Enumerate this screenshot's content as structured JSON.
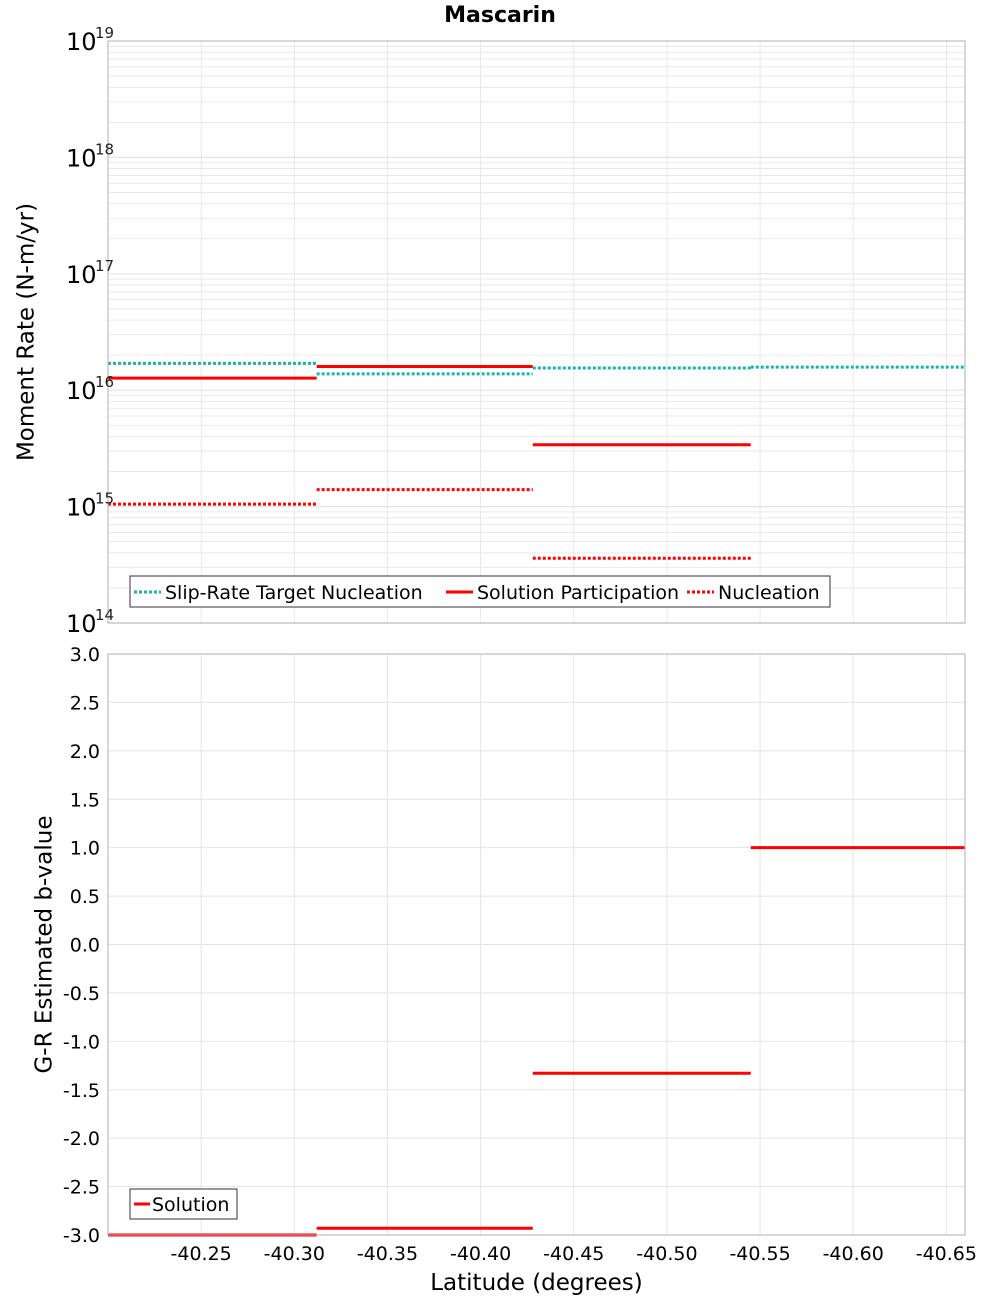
{
  "title": "Mascarin",
  "colors": {
    "target": "#1ab3b3",
    "solution": "#ff0000",
    "grid": "#e4e4e4",
    "frame": "#b0b0b0"
  },
  "chart_data": [
    {
      "type": "line",
      "title": "Mascarin",
      "xlabel": "",
      "ylabel": "Moment Rate (N-m/yr)",
      "yscale": "log",
      "ylim": [
        100000000000000.0,
        1e+19
      ],
      "xlim": [
        -40.2,
        -40.66
      ],
      "ytick_base": "10",
      "yticks": [
        {
          "value": 1e+19,
          "exp": "19"
        },
        {
          "value": 1e+18,
          "exp": "18"
        },
        {
          "value": 1e+17,
          "exp": "17"
        },
        {
          "value": 1e+16,
          "exp": "16"
        },
        {
          "value": 1000000000000000.0,
          "exp": "15"
        },
        {
          "value": 100000000000000.0,
          "exp": "14"
        }
      ],
      "grid": true,
      "legend_position": "bottom-left",
      "series": [
        {
          "name": "Slip-Rate Target Nucleation",
          "style": "dotted",
          "color": "#1ab3b3",
          "segments": [
            {
              "x": [
                -40.2,
                -40.312
              ],
              "y": 1.7e+16
            },
            {
              "x": [
                -40.312,
                -40.428
              ],
              "y": 1.38e+16
            },
            {
              "x": [
                -40.428,
                -40.545
              ],
              "y": 1.55e+16
            },
            {
              "x": [
                -40.545,
                -40.66
              ],
              "y": 1.58e+16
            }
          ]
        },
        {
          "name": "Solution Participation",
          "style": "solid",
          "color": "#ff0000",
          "segments": [
            {
              "x": [
                -40.2,
                -40.312
              ],
              "y": 1.27e+16
            },
            {
              "x": [
                -40.312,
                -40.428
              ],
              "y": 1.6e+16
            },
            {
              "x": [
                -40.428,
                -40.545
              ],
              "y": 3400000000000000.0
            }
          ]
        },
        {
          "name": "Nucleation",
          "style": "dotted",
          "color": "#ff0000",
          "segments": [
            {
              "x": [
                -40.2,
                -40.312
              ],
              "y": 1050000000000000.0
            },
            {
              "x": [
                -40.312,
                -40.428
              ],
              "y": 1400000000000000.0
            },
            {
              "x": [
                -40.428,
                -40.545
              ],
              "y": 360000000000000.0
            }
          ]
        }
      ]
    },
    {
      "type": "line",
      "xlabel": "Latitude (degrees)",
      "ylabel": "G-R Estimated b-value",
      "ylim": [
        -3.0,
        3.0
      ],
      "xlim": [
        -40.2,
        -40.66
      ],
      "yticks": [
        "3.0",
        "2.5",
        "2.0",
        "1.5",
        "1.0",
        "0.5",
        "0.0",
        "-0.5",
        "-1.0",
        "-1.5",
        "-2.0",
        "-2.5",
        "-3.0"
      ],
      "xticks": [
        "-40.25",
        "-40.30",
        "-40.35",
        "-40.40",
        "-40.45",
        "-40.50",
        "-40.55",
        "-40.60",
        "-40.65"
      ],
      "grid": true,
      "legend_position": "bottom-left",
      "series": [
        {
          "name": "Solution",
          "style": "solid",
          "color": "#ff0000",
          "segments": [
            {
              "x": [
                -40.2,
                -40.312
              ],
              "y": -3.0
            },
            {
              "x": [
                -40.312,
                -40.428
              ],
              "y": -2.93
            },
            {
              "x": [
                -40.428,
                -40.545
              ],
              "y": -1.33
            },
            {
              "x": [
                -40.545,
                -40.66
              ],
              "y": 1.0
            }
          ]
        }
      ]
    }
  ]
}
